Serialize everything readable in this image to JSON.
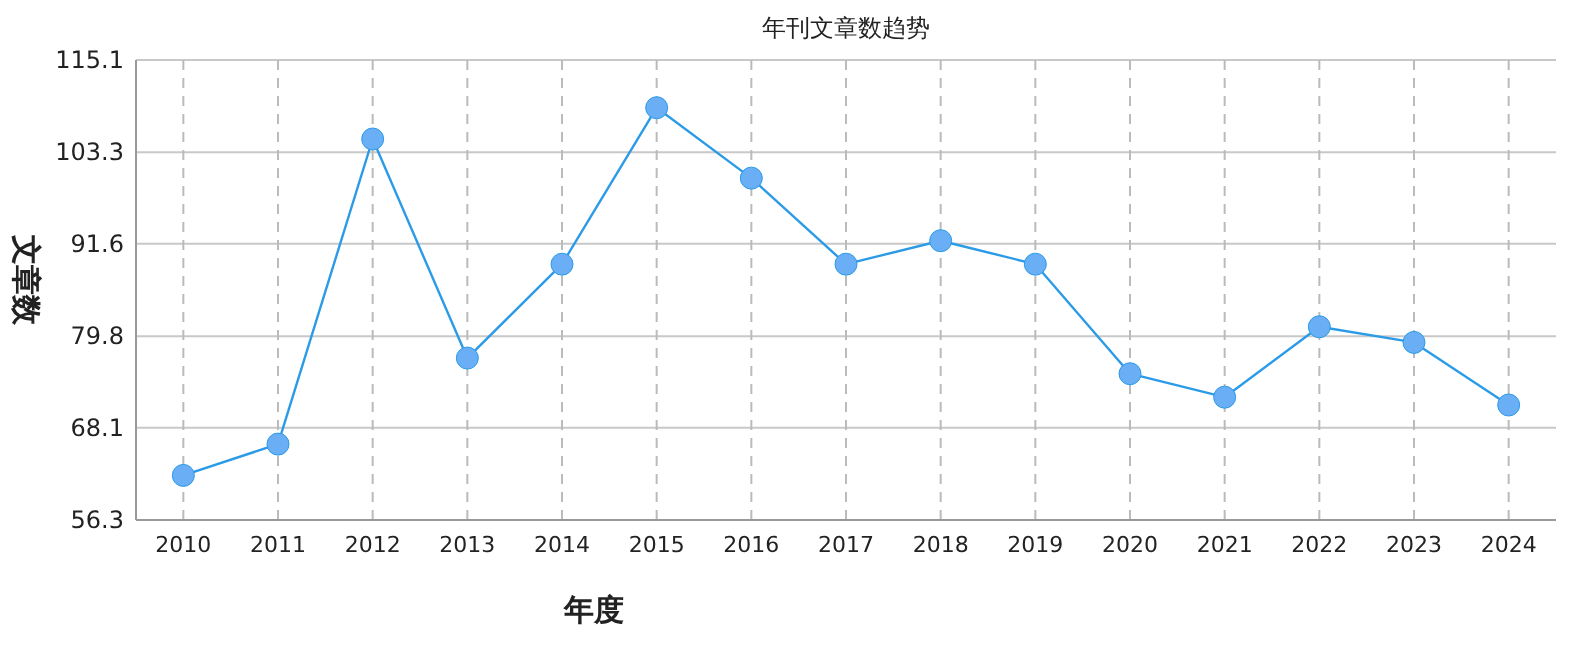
{
  "chart_data": {
    "type": "line",
    "title": "年刊文章数趋势",
    "xlabel": "年度",
    "ylabel": "文章数",
    "categories": [
      "2010",
      "2011",
      "2012",
      "2013",
      "2014",
      "2015",
      "2016",
      "2017",
      "2018",
      "2019",
      "2020",
      "2021",
      "2022",
      "2023",
      "2024"
    ],
    "series": [
      {
        "color": "#2b9be8",
        "values": [
          62,
          66,
          105,
          77,
          89,
          109,
          100,
          89,
          92,
          89,
          75,
          72,
          81,
          79,
          71
        ]
      }
    ],
    "ylim": [
      56.3,
      115.1
    ],
    "yticks": [
      56.3,
      68.1,
      79.8,
      91.6,
      103.3,
      115.1
    ],
    "grid": true,
    "marker": "circle",
    "line_style": "solid"
  }
}
